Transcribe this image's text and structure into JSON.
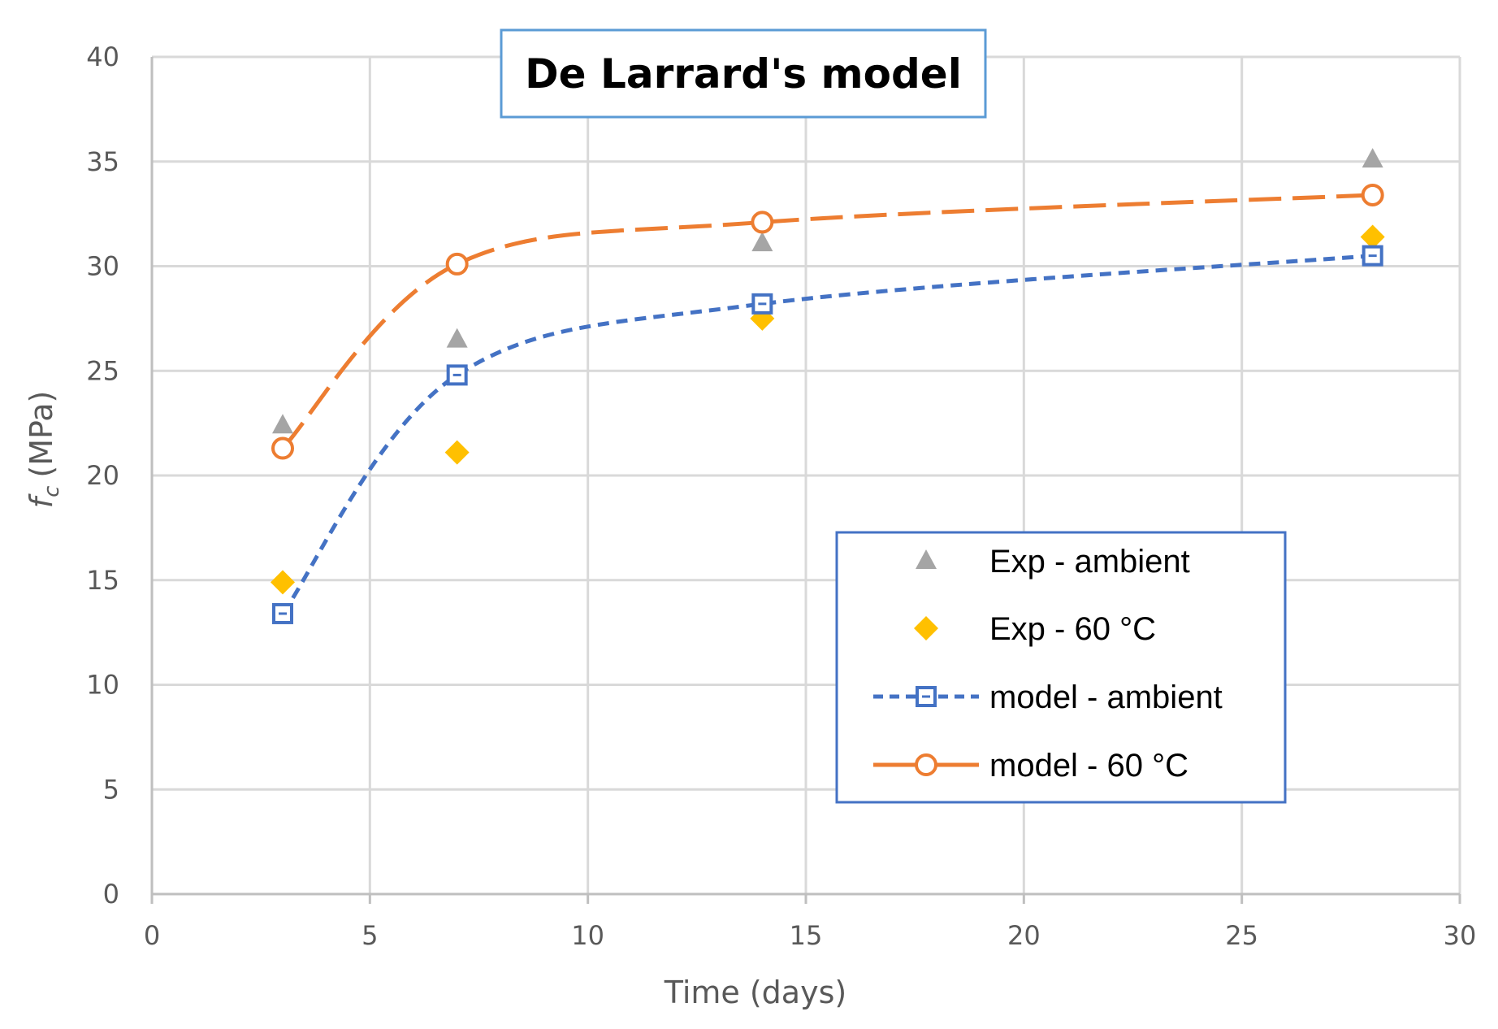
{
  "chart_data": {
    "type": "scatter",
    "title": "De Larrard's model",
    "xlabel": "Time (days)",
    "ylabel_symbol": "f",
    "ylabel_subscript": "c",
    "ylabel_unit": "(MPa)",
    "xlim": [
      0,
      30
    ],
    "ylim": [
      0,
      40
    ],
    "xticks": [
      0,
      5,
      10,
      15,
      20,
      25,
      30
    ],
    "yticks": [
      0,
      5,
      10,
      15,
      20,
      25,
      30,
      35,
      40
    ],
    "grid": true,
    "legend_position": "center-right",
    "series": [
      {
        "name": "Exp - ambient",
        "kind": "markers",
        "marker": "triangle",
        "color": "#A5A5A5",
        "x": [
          3,
          7,
          14,
          28
        ],
        "y": [
          22.4,
          26.5,
          31.1,
          35.1
        ]
      },
      {
        "name": "Exp - 60 °C",
        "kind": "markers",
        "marker": "diamond",
        "color": "#FFC000",
        "x": [
          3,
          7,
          14,
          28
        ],
        "y": [
          14.9,
          21.1,
          27.5,
          31.4
        ]
      },
      {
        "name": "model - ambient",
        "kind": "line",
        "marker": "square",
        "dash": "short",
        "color": "#4472C4",
        "x": [
          3,
          7,
          14,
          28
        ],
        "y": [
          13.4,
          24.8,
          28.2,
          30.5
        ]
      },
      {
        "name": "model - 60 °C",
        "kind": "line",
        "marker": "circle",
        "dash": "long",
        "color": "#ED7D31",
        "x": [
          3,
          7,
          14,
          28
        ],
        "y": [
          21.3,
          30.1,
          32.1,
          33.4
        ]
      }
    ]
  }
}
